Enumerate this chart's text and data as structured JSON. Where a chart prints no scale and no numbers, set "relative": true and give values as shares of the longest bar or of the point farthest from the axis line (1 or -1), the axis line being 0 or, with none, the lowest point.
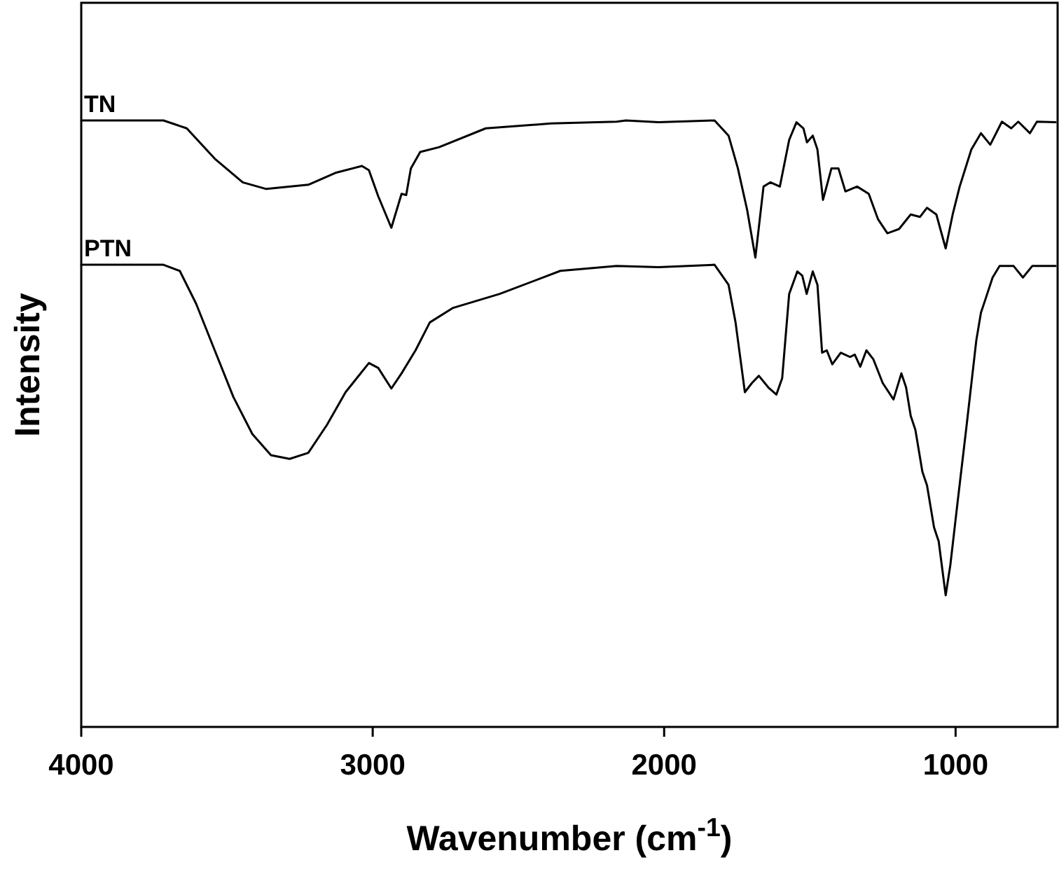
{
  "chart_data": {
    "type": "line",
    "relative": true,
    "xlabel": "Wavenumber (cm$^{-1}$)",
    "ylabel": "Intensity",
    "xlim": [
      4000,
      650
    ],
    "xticks": [
      4000,
      3000,
      2000,
      1000
    ],
    "grid": false,
    "line_style": "solid",
    "tick_labels": "x",
    "series": [
      {
        "name": "TN",
        "color": "#000000",
        "x": [
          4000,
          3718,
          3638,
          3542,
          3446,
          3365,
          3221,
          3125,
          3037,
          3013,
          2981,
          2936,
          2901,
          2885,
          2869,
          2837,
          2772,
          2612,
          2388,
          2163,
          2131,
          2019,
          1827,
          1779,
          1747,
          1715,
          1687,
          1659,
          1635,
          1603,
          1571,
          1546,
          1522,
          1510,
          1490,
          1474,
          1455,
          1426,
          1402,
          1378,
          1338,
          1298,
          1266,
          1234,
          1194,
          1154,
          1122,
          1098,
          1066,
          1034,
          1010,
          986,
          946,
          913,
          881,
          841,
          809,
          785,
          745,
          721,
          657
        ],
        "values": [
          1.0,
          1.0,
          0.987,
          0.937,
          0.898,
          0.887,
          0.894,
          0.914,
          0.925,
          0.918,
          0.875,
          0.823,
          0.879,
          0.877,
          0.921,
          0.948,
          0.956,
          0.987,
          0.995,
          0.998,
          1.0,
          0.997,
          1.0,
          0.975,
          0.921,
          0.852,
          0.774,
          0.891,
          0.898,
          0.891,
          0.968,
          0.997,
          0.987,
          0.964,
          0.975,
          0.952,
          0.869,
          0.921,
          0.921,
          0.883,
          0.891,
          0.879,
          0.837,
          0.814,
          0.821,
          0.845,
          0.841,
          0.856,
          0.845,
          0.789,
          0.845,
          0.891,
          0.952,
          0.979,
          0.96,
          0.998,
          0.987,
          0.998,
          0.979,
          0.998,
          0.997
        ]
      },
      {
        "name": "PTN",
        "color": "#000000",
        "x": [
          4000,
          3718,
          3662,
          3606,
          3542,
          3478,
          3413,
          3349,
          3285,
          3221,
          3157,
          3093,
          3013,
          2981,
          2936,
          2901,
          2853,
          2804,
          2724,
          2564,
          2356,
          2163,
          2019,
          1827,
          1779,
          1755,
          1723,
          1699,
          1675,
          1643,
          1615,
          1595,
          1571,
          1543,
          1526,
          1511,
          1490,
          1474,
          1458,
          1442,
          1423,
          1394,
          1362,
          1346,
          1327,
          1306,
          1282,
          1250,
          1213,
          1186,
          1170,
          1154,
          1138,
          1114,
          1098,
          1074,
          1058,
          1034,
          1018,
          994,
          962,
          929,
          913,
          897,
          873,
          849,
          801,
          769,
          737,
          657
        ],
        "values": [
          0.762,
          0.762,
          0.752,
          0.698,
          0.621,
          0.544,
          0.483,
          0.448,
          0.442,
          0.452,
          0.498,
          0.552,
          0.6,
          0.592,
          0.558,
          0.583,
          0.621,
          0.667,
          0.691,
          0.714,
          0.752,
          0.76,
          0.758,
          0.762,
          0.729,
          0.667,
          0.552,
          0.567,
          0.579,
          0.56,
          0.548,
          0.575,
          0.714,
          0.751,
          0.744,
          0.714,
          0.751,
          0.729,
          0.617,
          0.621,
          0.598,
          0.617,
          0.61,
          0.614,
          0.594,
          0.621,
          0.606,
          0.567,
          0.54,
          0.583,
          0.56,
          0.513,
          0.49,
          0.421,
          0.398,
          0.329,
          0.306,
          0.217,
          0.267,
          0.367,
          0.498,
          0.637,
          0.683,
          0.706,
          0.741,
          0.76,
          0.76,
          0.741,
          0.76,
          0.76
        ]
      }
    ]
  }
}
